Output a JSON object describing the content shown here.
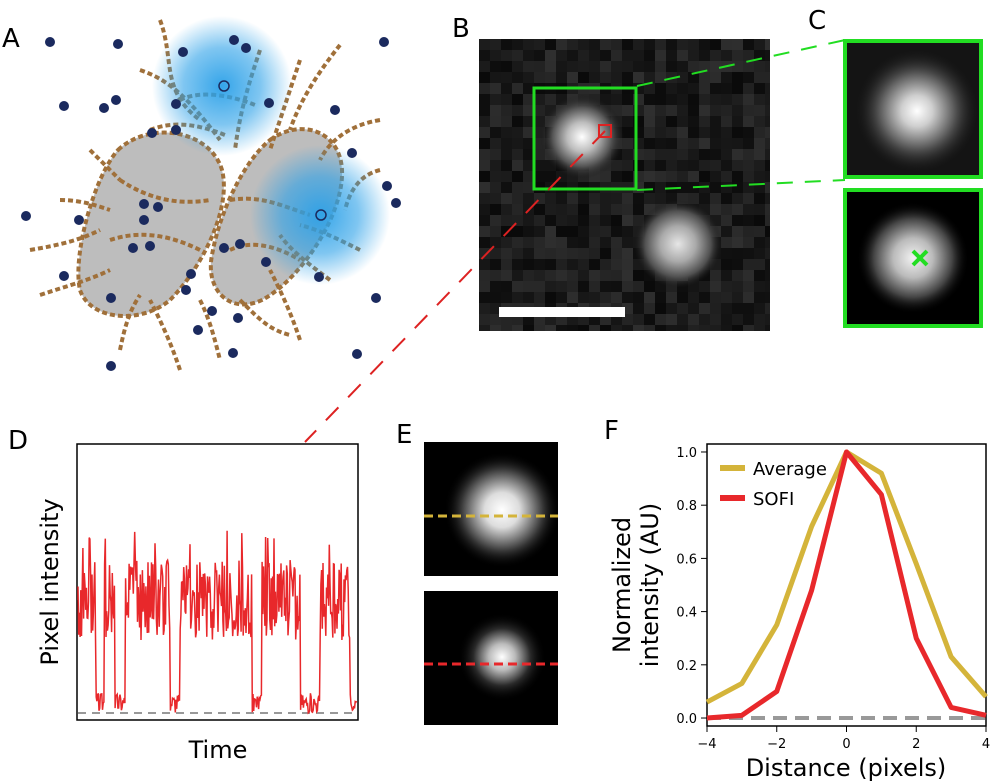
{
  "panels": {
    "a": "A",
    "b": "B",
    "c": "C",
    "d": "D",
    "e": "E",
    "f": "F"
  },
  "panel_d": {
    "xlabel": "Time",
    "ylabel": "Pixel intensity"
  },
  "colors": {
    "average": "#d4b43a",
    "sofi": "#e8282b",
    "baseline": "#999999",
    "roi_green": "#22dd22",
    "roi_red": "#dd2222",
    "fiber": "#a0703a",
    "cell": "#bdbdbd",
    "dot": "#1b2a5e",
    "glow": "#2aa0e8"
  },
  "chart_data": {
    "type": "line",
    "xlabel": "Distance (pixels)",
    "ylabel": "Normalized intensity (AU)",
    "xlim": [
      -4,
      4
    ],
    "ylim": [
      -0.03,
      1.03
    ],
    "xticks": [
      "−4",
      "−2",
      "0",
      "2",
      "4"
    ],
    "yticks": [
      "0.0",
      "0.2",
      "0.4",
      "0.6",
      "0.8",
      "1.0"
    ],
    "legend": "top-left",
    "x": [
      -4,
      -3,
      -2,
      -1,
      0,
      1,
      2,
      3,
      4
    ],
    "series": [
      {
        "name": "Average",
        "values": [
          0.06,
          0.13,
          0.35,
          0.72,
          1.0,
          0.92,
          0.58,
          0.23,
          0.08
        ]
      },
      {
        "name": "SOFI",
        "values": [
          0.0,
          0.01,
          0.1,
          0.48,
          1.0,
          0.84,
          0.3,
          0.04,
          0.01
        ]
      }
    ],
    "baseline": 0.0
  }
}
